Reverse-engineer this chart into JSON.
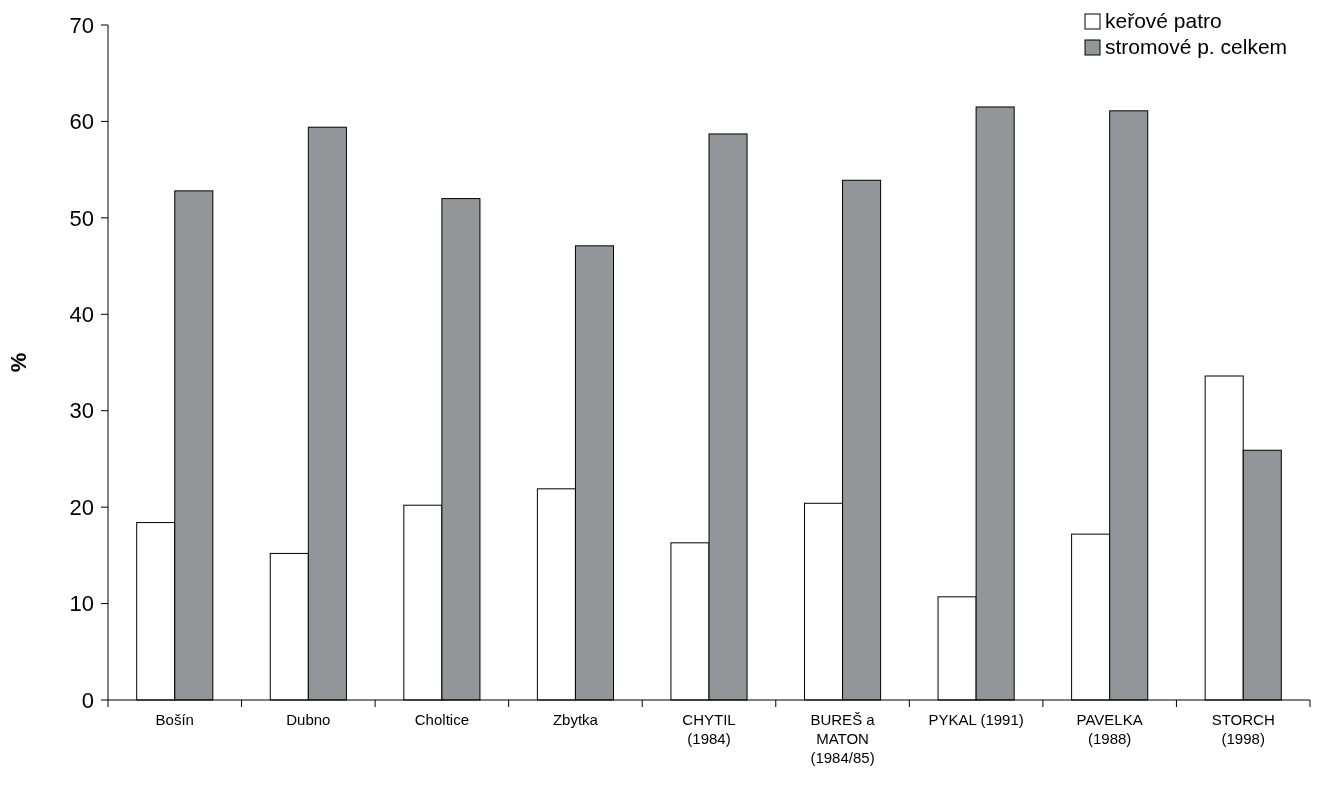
{
  "chart_data": {
    "type": "bar",
    "ylabel": "%",
    "categories": [
      "Bošín",
      "Dubno",
      "Choltice",
      "Zbytka",
      "CHYTIL\n(1984)",
      "BUREŠ a\nMATON\n(1984/85)",
      "PYKAL (1991)",
      "PAVELKA\n(1988)",
      "STORCH\n(1998)"
    ],
    "series": [
      {
        "name": "keřové patro",
        "color": "#ffffff",
        "values": [
          18.4,
          15.2,
          20.2,
          21.9,
          16.3,
          20.4,
          10.7,
          17.2,
          33.6
        ]
      },
      {
        "name": "stromové p. celkem",
        "color": "#939598",
        "values": [
          52.8,
          59.4,
          52.0,
          47.1,
          58.7,
          53.9,
          61.5,
          61.1,
          25.9
        ]
      }
    ],
    "ylim": [
      0,
      70
    ],
    "yticks": [
      0,
      10,
      20,
      30,
      40,
      50,
      60,
      70
    ],
    "grid": false,
    "legend": "top right"
  }
}
